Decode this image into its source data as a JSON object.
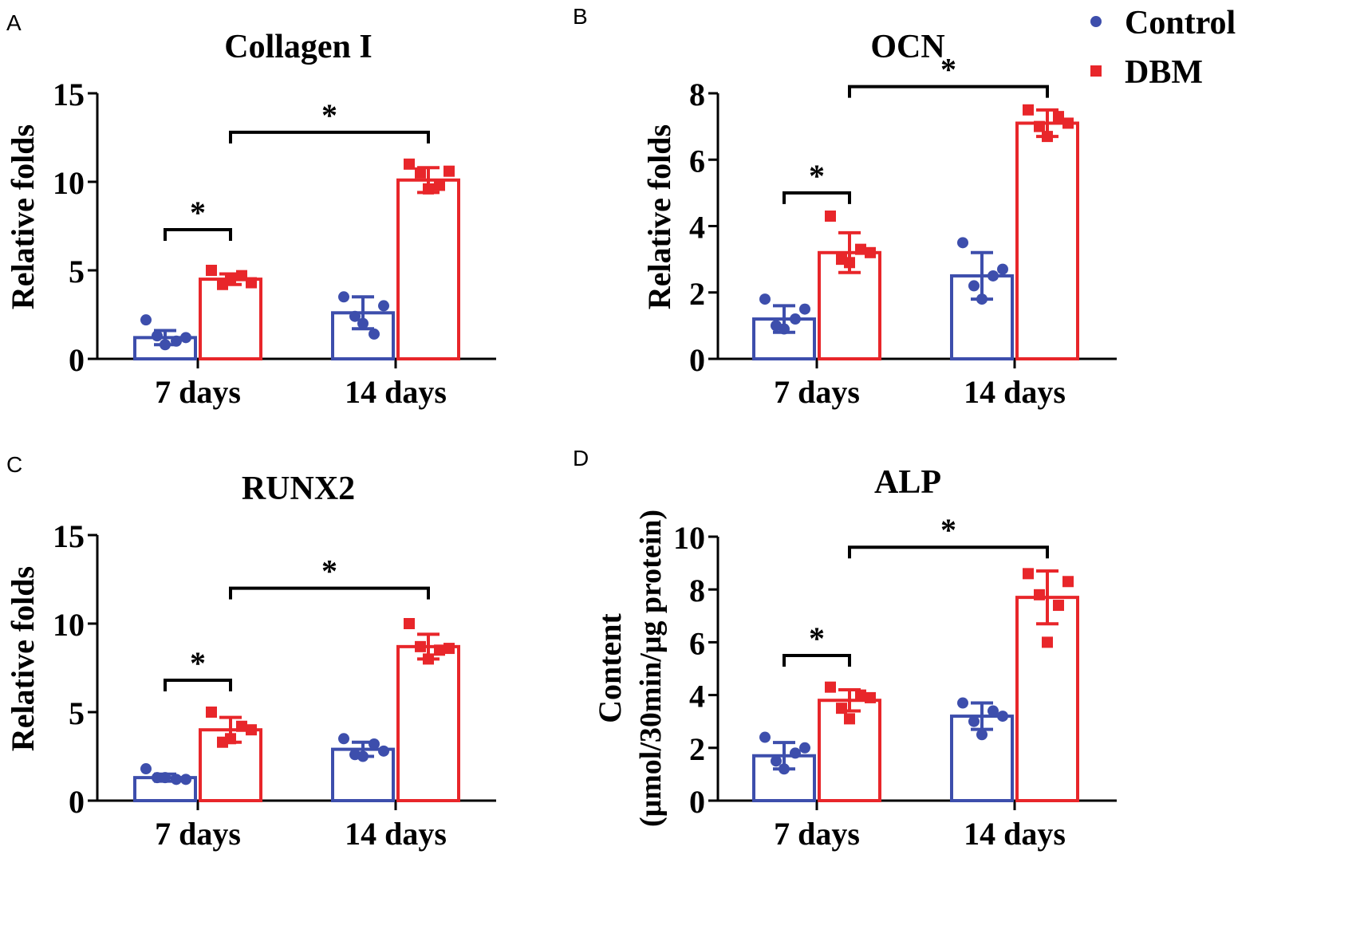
{
  "legend": {
    "items": [
      {
        "name": "Control",
        "color": "#3d4eac",
        "marker": "circle"
      },
      {
        "name": "DBM",
        "color": "#e8262a",
        "marker": "square"
      }
    ]
  },
  "significance_mark": "*",
  "chart_data": [
    {
      "panel": "A",
      "type": "bar",
      "title": "Collagen I",
      "xlabel": "",
      "ylabel": "Relative folds",
      "ylim": [
        0,
        15
      ],
      "yticks": [
        0,
        5,
        10,
        15
      ],
      "categories": [
        "7 days",
        "14 days"
      ],
      "series": [
        {
          "name": "Control",
          "values": [
            1.2,
            2.6
          ],
          "errors": [
            0.4,
            0.9
          ],
          "points": [
            [
              2.2,
              1.3,
              0.8,
              1.0,
              1.2
            ],
            [
              3.5,
              2.4,
              2.0,
              1.4,
              3.0
            ]
          ]
        },
        {
          "name": "DBM",
          "values": [
            4.5,
            10.1
          ],
          "errors": [
            0.3,
            0.7
          ],
          "points": [
            [
              5.0,
              4.2,
              4.5,
              4.7,
              4.3
            ],
            [
              11.0,
              10.5,
              9.6,
              9.8,
              10.6
            ]
          ]
        }
      ],
      "significance": [
        {
          "from": [
            "7 days",
            "Control"
          ],
          "to": [
            "7 days",
            "DBM"
          ],
          "y": 7.3,
          "label": "*"
        },
        {
          "from": [
            "7 days",
            "DBM"
          ],
          "to": [
            "14 days",
            "DBM"
          ],
          "y": 12.8,
          "label": "*"
        }
      ]
    },
    {
      "panel": "B",
      "type": "bar",
      "title": "OCN",
      "xlabel": "",
      "ylabel": "Relative folds",
      "ylim": [
        0,
        8
      ],
      "yticks": [
        0,
        2,
        4,
        6,
        8
      ],
      "categories": [
        "7 days",
        "14 days"
      ],
      "series": [
        {
          "name": "Control",
          "values": [
            1.2,
            2.5
          ],
          "errors": [
            0.4,
            0.7
          ],
          "points": [
            [
              1.8,
              1.0,
              0.9,
              1.2,
              1.5
            ],
            [
              3.5,
              2.2,
              1.8,
              2.5,
              2.7
            ]
          ]
        },
        {
          "name": "DBM",
          "values": [
            3.2,
            7.1
          ],
          "errors": [
            0.6,
            0.4
          ],
          "points": [
            [
              4.3,
              3.0,
              2.9,
              3.3,
              3.2
            ],
            [
              7.5,
              7.0,
              6.7,
              7.3,
              7.1
            ]
          ]
        }
      ],
      "significance": [
        {
          "from": [
            "7 days",
            "Control"
          ],
          "to": [
            "7 days",
            "DBM"
          ],
          "y": 5.0,
          "label": "*"
        },
        {
          "from": [
            "7 days",
            "DBM"
          ],
          "to": [
            "14 days",
            "DBM"
          ],
          "y": 8.2,
          "label": "*"
        }
      ]
    },
    {
      "panel": "C",
      "type": "bar",
      "title": "RUNX2",
      "xlabel": "",
      "ylabel": "Relative folds",
      "ylim": [
        0,
        15
      ],
      "yticks": [
        0,
        5,
        10,
        15
      ],
      "categories": [
        "7 days",
        "14 days"
      ],
      "series": [
        {
          "name": "Control",
          "values": [
            1.3,
            2.9
          ],
          "errors": [
            0.2,
            0.4
          ],
          "points": [
            [
              1.8,
              1.3,
              1.3,
              1.2,
              1.2
            ],
            [
              3.5,
              2.6,
              2.5,
              3.2,
              2.8
            ]
          ]
        },
        {
          "name": "DBM",
          "values": [
            4.0,
            8.7
          ],
          "errors": [
            0.7,
            0.7
          ],
          "points": [
            [
              5.0,
              3.3,
              3.5,
              4.2,
              4.0
            ],
            [
              10.0,
              8.7,
              8.0,
              8.5,
              8.6
            ]
          ]
        }
      ],
      "significance": [
        {
          "from": [
            "7 days",
            "Control"
          ],
          "to": [
            "7 days",
            "DBM"
          ],
          "y": 6.8,
          "label": "*"
        },
        {
          "from": [
            "7 days",
            "DBM"
          ],
          "to": [
            "14 days",
            "DBM"
          ],
          "y": 12.0,
          "label": "*"
        }
      ]
    },
    {
      "panel": "D",
      "type": "bar",
      "title": "ALP",
      "xlabel": "",
      "ylabel": "Content",
      "ylabel2": "(μmol/30min/μg protein)",
      "ylim": [
        0,
        10
      ],
      "yticks": [
        0,
        2,
        4,
        6,
        8,
        10
      ],
      "categories": [
        "7 days",
        "14 days"
      ],
      "series": [
        {
          "name": "Control",
          "values": [
            1.7,
            3.2
          ],
          "errors": [
            0.5,
            0.5
          ],
          "points": [
            [
              2.4,
              1.5,
              1.2,
              1.8,
              2.0
            ],
            [
              3.7,
              3.0,
              2.5,
              3.4,
              3.2
            ]
          ]
        },
        {
          "name": "DBM",
          "values": [
            3.8,
            7.7
          ],
          "errors": [
            0.4,
            1.0
          ],
          "points": [
            [
              4.3,
              3.5,
              3.1,
              4.0,
              3.9
            ],
            [
              8.6,
              7.8,
              6.0,
              7.4,
              8.3
            ]
          ]
        }
      ],
      "significance": [
        {
          "from": [
            "7 days",
            "Control"
          ],
          "to": [
            "7 days",
            "DBM"
          ],
          "y": 5.5,
          "label": "*"
        },
        {
          "from": [
            "7 days",
            "DBM"
          ],
          "to": [
            "14 days",
            "DBM"
          ],
          "y": 9.6,
          "label": "*"
        }
      ]
    }
  ]
}
